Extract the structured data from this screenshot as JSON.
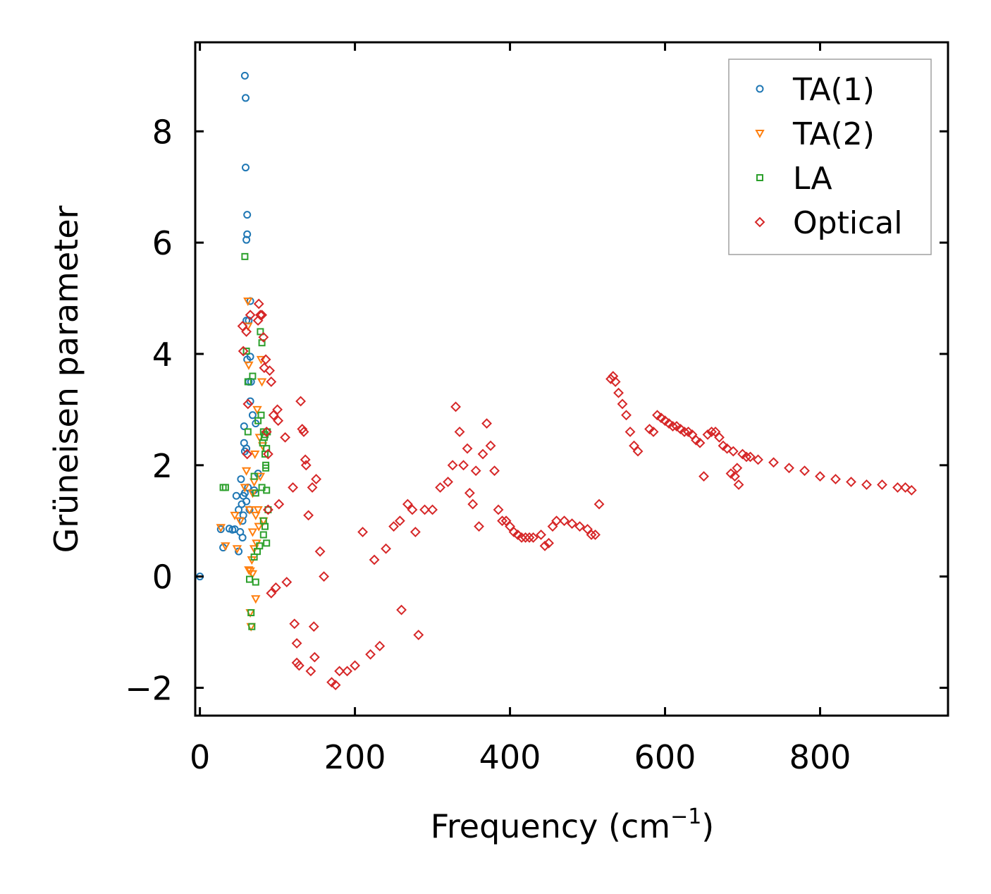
{
  "chart_data": {
    "type": "scatter",
    "title": "",
    "xlabel": "Frequency (cm",
    "xlabel_sup": "−1",
    "xlabel_end": ")",
    "ylabel": "Grüneisen parameter",
    "xlim": [
      -6,
      965
    ],
    "ylim": [
      -2.5,
      9.6
    ],
    "xticks": [
      0,
      200,
      400,
      600,
      800
    ],
    "xtick_labels": [
      "0",
      "200",
      "400",
      "600",
      "800"
    ],
    "yticks": [
      -2,
      0,
      2,
      4,
      6,
      8
    ],
    "ytick_labels": [
      "−2",
      "0",
      "2",
      "4",
      "6",
      "8"
    ],
    "legend_position": "top-right",
    "grid": false,
    "series": [
      {
        "name": "TA(1)",
        "marker": "circle",
        "color": "#1f77b4",
        "points": [
          [
            0,
            0
          ],
          [
            27,
            0.85
          ],
          [
            30,
            0.52
          ],
          [
            38,
            0.86
          ],
          [
            42,
            0.84
          ],
          [
            45,
            0.85
          ],
          [
            47,
            1.45
          ],
          [
            50,
            0.45
          ],
          [
            50,
            1.2
          ],
          [
            52,
            0.8
          ],
          [
            53,
            1.75
          ],
          [
            54,
            1.3
          ],
          [
            55,
            1.0
          ],
          [
            55,
            0.7
          ],
          [
            56,
            1.1
          ],
          [
            57,
            2.7
          ],
          [
            57,
            2.4
          ],
          [
            58,
            1.5
          ],
          [
            58,
            9.0
          ],
          [
            59,
            8.6
          ],
          [
            59,
            7.35
          ],
          [
            60,
            6.05
          ],
          [
            60,
            4.6
          ],
          [
            60,
            2.3
          ],
          [
            61,
            6.5
          ],
          [
            61,
            6.15
          ],
          [
            61,
            3.9
          ],
          [
            62,
            1.6
          ],
          [
            63,
            4.6
          ],
          [
            63,
            3.5
          ],
          [
            64,
            1.2
          ],
          [
            65,
            4.95
          ],
          [
            65,
            3.15
          ],
          [
            65,
            3.95
          ],
          [
            66,
            3.5
          ],
          [
            68,
            2.9
          ],
          [
            70,
            1.55
          ],
          [
            72,
            2.75
          ],
          [
            75,
            1.85
          ],
          [
            58,
            2.25
          ],
          [
            56,
            1.45
          ],
          [
            60,
            1.35
          ]
        ]
      },
      {
        "name": "TA(2)",
        "marker": "triangle-down",
        "color": "#ff7f0e",
        "points": [
          [
            27,
            0.88
          ],
          [
            33,
            0.55
          ],
          [
            45,
            1.1
          ],
          [
            48,
            0.5
          ],
          [
            52,
            1.0
          ],
          [
            58,
            1.6
          ],
          [
            60,
            1.9
          ],
          [
            62,
            4.5
          ],
          [
            62,
            4.95
          ],
          [
            63,
            3.8
          ],
          [
            63,
            0.12
          ],
          [
            64,
            1.2
          ],
          [
            65,
            0.1
          ],
          [
            65,
            -0.65
          ],
          [
            66,
            -0.9
          ],
          [
            67,
            0.3
          ],
          [
            68,
            0.8
          ],
          [
            68,
            1.5
          ],
          [
            70,
            1.7
          ],
          [
            71,
            2.2
          ],
          [
            72,
            1.1
          ],
          [
            73,
            0.6
          ],
          [
            74,
            3.0
          ],
          [
            75,
            1.2
          ],
          [
            76,
            0.9
          ],
          [
            77,
            2.5
          ],
          [
            78,
            1.8
          ],
          [
            79,
            3.9
          ],
          [
            80,
            3.5
          ],
          [
            81,
            2.35
          ],
          [
            82,
            1.0
          ],
          [
            70,
            0.5
          ],
          [
            72,
            -0.4
          ],
          [
            68,
            0.05
          ]
        ]
      },
      {
        "name": "LA",
        "marker": "square",
        "color": "#2ca02c",
        "points": [
          [
            30,
            1.6
          ],
          [
            33,
            1.6
          ],
          [
            58,
            5.75
          ],
          [
            60,
            4.05
          ],
          [
            62,
            2.6
          ],
          [
            62,
            3.5
          ],
          [
            64,
            -0.05
          ],
          [
            66,
            -0.65
          ],
          [
            67,
            -0.9
          ],
          [
            68,
            3.6
          ],
          [
            70,
            0.35
          ],
          [
            70,
            1.8
          ],
          [
            72,
            -0.1
          ],
          [
            72,
            1.5
          ],
          [
            74,
            0.45
          ],
          [
            75,
            2.8
          ],
          [
            77,
            0.55
          ],
          [
            78,
            4.4
          ],
          [
            79,
            2.9
          ],
          [
            80,
            4.2
          ],
          [
            80,
            1.6
          ],
          [
            81,
            2.4
          ],
          [
            82,
            2.6
          ],
          [
            82,
            1.0
          ],
          [
            83,
            2.5
          ],
          [
            84,
            2.55
          ],
          [
            84,
            2.2
          ],
          [
            85,
            2.0
          ],
          [
            85,
            1.95
          ],
          [
            86,
            1.55
          ],
          [
            86,
            0.6
          ],
          [
            87,
            2.6
          ],
          [
            84,
            0.9
          ],
          [
            82,
            0.75
          ],
          [
            86,
            2.3
          ],
          [
            88,
            1.2
          ]
        ]
      },
      {
        "name": "Optical",
        "marker": "diamond",
        "color": "#d62728",
        "points": [
          [
            55,
            4.5
          ],
          [
            56,
            4.05
          ],
          [
            60,
            4.4
          ],
          [
            61,
            2.2
          ],
          [
            62,
            3.1
          ],
          [
            65,
            4.7
          ],
          [
            75,
            4.6
          ],
          [
            76,
            4.9
          ],
          [
            78,
            4.7
          ],
          [
            80,
            4.7
          ],
          [
            82,
            4.3
          ],
          [
            83,
            3.75
          ],
          [
            85,
            3.9
          ],
          [
            86,
            2.6
          ],
          [
            88,
            2.2
          ],
          [
            88,
            1.2
          ],
          [
            90,
            3.7
          ],
          [
            92,
            3.5
          ],
          [
            92,
            -0.3
          ],
          [
            95,
            2.9
          ],
          [
            98,
            -0.2
          ],
          [
            100,
            3.0
          ],
          [
            101,
            2.8
          ],
          [
            102,
            1.3
          ],
          [
            110,
            2.5
          ],
          [
            112,
            -0.1
          ],
          [
            120,
            1.6
          ],
          [
            122,
            -0.85
          ],
          [
            125,
            -1.2
          ],
          [
            125,
            -1.55
          ],
          [
            128,
            -1.6
          ],
          [
            130,
            3.15
          ],
          [
            132,
            2.65
          ],
          [
            134,
            2.6
          ],
          [
            136,
            2.1
          ],
          [
            137,
            2.0
          ],
          [
            140,
            1.1
          ],
          [
            143,
            -1.7
          ],
          [
            145,
            1.6
          ],
          [
            147,
            -0.9
          ],
          [
            148,
            -1.45
          ],
          [
            150,
            1.75
          ],
          [
            155,
            0.45
          ],
          [
            160,
            0.0
          ],
          [
            170,
            -1.9
          ],
          [
            175,
            -1.95
          ],
          [
            180,
            -1.7
          ],
          [
            190,
            -1.7
          ],
          [
            200,
            -1.6
          ],
          [
            210,
            0.8
          ],
          [
            220,
            -1.4
          ],
          [
            225,
            0.3
          ],
          [
            232,
            -1.25
          ],
          [
            240,
            0.5
          ],
          [
            250,
            0.9
          ],
          [
            258,
            1.0
          ],
          [
            260,
            -0.6
          ],
          [
            268,
            1.3
          ],
          [
            274,
            1.2
          ],
          [
            278,
            0.8
          ],
          [
            282,
            -1.05
          ],
          [
            290,
            1.2
          ],
          [
            300,
            1.2
          ],
          [
            310,
            1.6
          ],
          [
            320,
            1.7
          ],
          [
            326,
            2.0
          ],
          [
            330,
            3.05
          ],
          [
            335,
            2.6
          ],
          [
            340,
            2.0
          ],
          [
            345,
            2.3
          ],
          [
            348,
            1.5
          ],
          [
            352,
            1.3
          ],
          [
            356,
            1.9
          ],
          [
            360,
            0.9
          ],
          [
            365,
            2.2
          ],
          [
            370,
            2.75
          ],
          [
            375,
            2.35
          ],
          [
            380,
            1.9
          ],
          [
            385,
            1.2
          ],
          [
            390,
            1.0
          ],
          [
            395,
            1.0
          ],
          [
            400,
            0.9
          ],
          [
            405,
            0.8
          ],
          [
            410,
            0.75
          ],
          [
            415,
            0.7
          ],
          [
            420,
            0.7
          ],
          [
            425,
            0.7
          ],
          [
            430,
            0.7
          ],
          [
            440,
            0.75
          ],
          [
            445,
            0.55
          ],
          [
            450,
            0.6
          ],
          [
            455,
            0.9
          ],
          [
            460,
            1.0
          ],
          [
            470,
            1.0
          ],
          [
            480,
            0.95
          ],
          [
            490,
            0.9
          ],
          [
            500,
            0.85
          ],
          [
            505,
            0.75
          ],
          [
            510,
            0.75
          ],
          [
            515,
            1.3
          ],
          [
            530,
            3.55
          ],
          [
            533,
            3.6
          ],
          [
            536,
            3.5
          ],
          [
            540,
            3.3
          ],
          [
            545,
            3.1
          ],
          [
            550,
            2.9
          ],
          [
            555,
            2.6
          ],
          [
            560,
            2.35
          ],
          [
            565,
            2.25
          ],
          [
            580,
            2.65
          ],
          [
            585,
            2.6
          ],
          [
            590,
            2.9
          ],
          [
            595,
            2.85
          ],
          [
            600,
            2.8
          ],
          [
            605,
            2.75
          ],
          [
            610,
            2.7
          ],
          [
            615,
            2.7
          ],
          [
            620,
            2.65
          ],
          [
            625,
            2.6
          ],
          [
            630,
            2.6
          ],
          [
            635,
            2.55
          ],
          [
            640,
            2.45
          ],
          [
            645,
            2.4
          ],
          [
            650,
            1.8
          ],
          [
            655,
            2.55
          ],
          [
            660,
            2.6
          ],
          [
            665,
            2.6
          ],
          [
            670,
            2.5
          ],
          [
            675,
            2.35
          ],
          [
            680,
            2.3
          ],
          [
            685,
            1.85
          ],
          [
            688,
            2.25
          ],
          [
            690,
            1.8
          ],
          [
            693,
            1.95
          ],
          [
            695,
            1.65
          ],
          [
            700,
            2.2
          ],
          [
            705,
            2.15
          ],
          [
            710,
            2.15
          ],
          [
            720,
            2.1
          ],
          [
            740,
            2.05
          ],
          [
            760,
            1.95
          ],
          [
            780,
            1.9
          ],
          [
            800,
            1.8
          ],
          [
            820,
            1.75
          ],
          [
            840,
            1.7
          ],
          [
            860,
            1.65
          ],
          [
            880,
            1.65
          ],
          [
            900,
            1.6
          ],
          [
            910,
            1.6
          ],
          [
            918,
            1.55
          ]
        ]
      }
    ]
  }
}
